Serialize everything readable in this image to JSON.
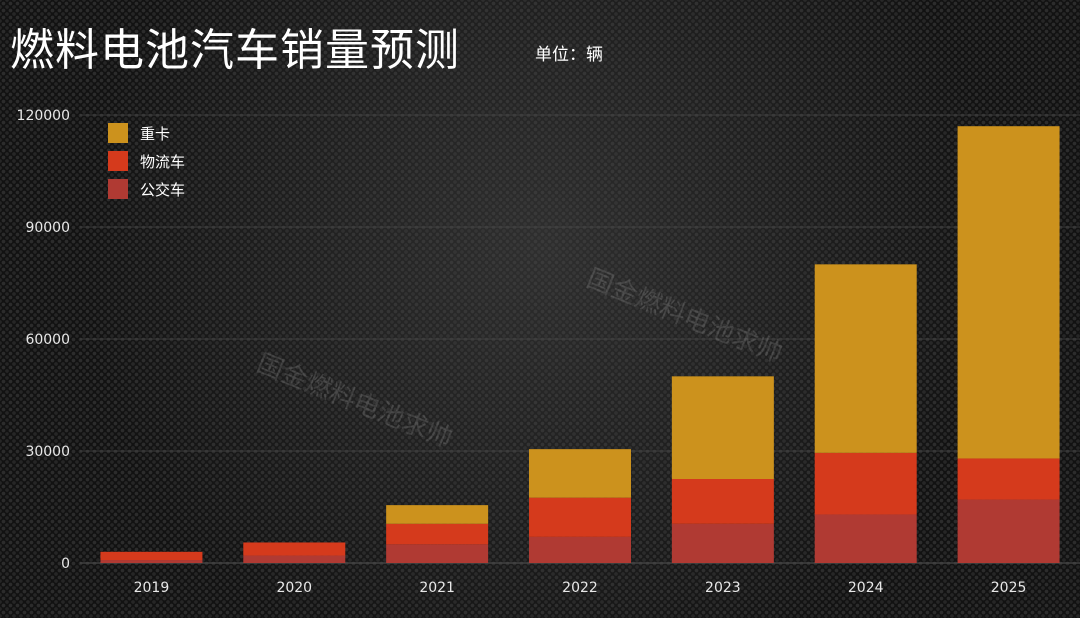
{
  "title": "燃料电池汽车销量预测",
  "unit_label": "单位：辆",
  "watermark": "国金燃料电池求帅",
  "colors": {
    "background": "#141414",
    "grid": "#4a4a4a",
    "text": "#ffffff"
  },
  "chart_data": {
    "type": "bar",
    "stacked": true,
    "categories": [
      "2019",
      "2020",
      "2021",
      "2022",
      "2023",
      "2024",
      "2025"
    ],
    "series": [
      {
        "name": "公交车",
        "color": "#b03a33",
        "values": [
          800,
          2000,
          5000,
          7000,
          10500,
          13000,
          17000
        ]
      },
      {
        "name": "物流车",
        "color": "#d53a1c",
        "values": [
          2200,
          3500,
          5500,
          10500,
          12000,
          16500,
          11000
        ]
      },
      {
        "name": "重卡",
        "color": "#cc921d",
        "values": [
          0,
          0,
          5000,
          13000,
          27500,
          50500,
          89000
        ]
      }
    ],
    "legend_order": [
      "重卡",
      "物流车",
      "公交车"
    ],
    "ylim": [
      0,
      120000
    ],
    "yticks": [
      "0",
      "30000",
      "60000",
      "90000",
      "120000"
    ],
    "grid": true,
    "legend_position": "top-left"
  }
}
